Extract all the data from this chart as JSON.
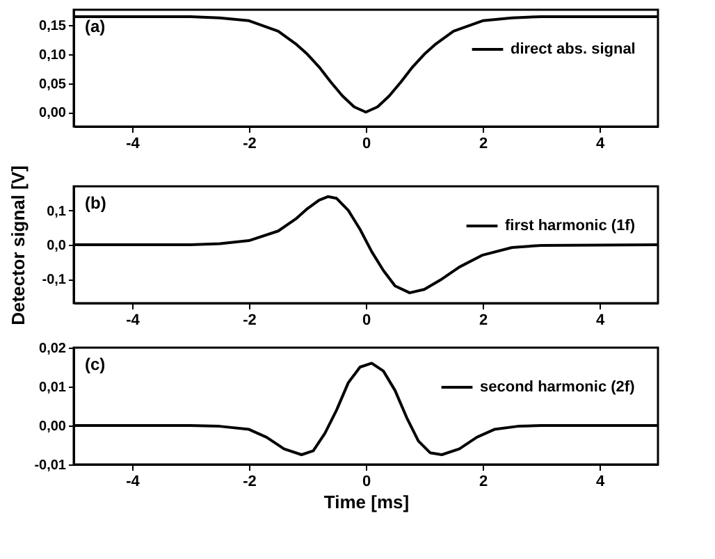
{
  "chart_data": [
    {
      "type": "line",
      "annotations": [
        "(a)"
      ],
      "legend": "top right",
      "xlim": [
        -5,
        5
      ],
      "xticks": [
        -4,
        -2,
        0,
        2,
        4
      ],
      "ylim": [
        -0.025,
        0.177
      ],
      "yticks": [
        {
          "value": 0,
          "label": "0,00"
        },
        {
          "value": 0.05,
          "label": "0,05"
        },
        {
          "value": 0.1,
          "label": "0,10"
        },
        {
          "value": 0.15,
          "label": "0,15"
        }
      ],
      "series": [
        {
          "name": "direct abs. signal",
          "color": "#000000",
          "x": [
            -5,
            -3,
            -2.5,
            -2,
            -1.5,
            -1.2,
            -1,
            -0.8,
            -0.6,
            -0.4,
            -0.2,
            0,
            0.2,
            0.4,
            0.6,
            0.8,
            1,
            1.2,
            1.5,
            2,
            2.5,
            3,
            5
          ],
          "values": [
            0.165,
            0.165,
            0.163,
            0.158,
            0.14,
            0.118,
            0.1,
            0.078,
            0.052,
            0.028,
            0.009,
            0,
            0.009,
            0.028,
            0.052,
            0.078,
            0.1,
            0.118,
            0.14,
            0.158,
            0.163,
            0.165,
            0.165
          ]
        }
      ]
    },
    {
      "type": "line",
      "annotations": [
        "(b)"
      ],
      "ylabel": "Detector signal [V]",
      "legend": "top right",
      "xlim": [
        -5,
        5
      ],
      "xticks": [
        -4,
        -2,
        0,
        2,
        4
      ],
      "ylim": [
        -0.17,
        0.17
      ],
      "yticks": [
        {
          "value": -0.1,
          "label": "-0,1"
        },
        {
          "value": 0,
          "label": "0,0"
        },
        {
          "value": 0.1,
          "label": "0,1"
        }
      ],
      "series": [
        {
          "name": "first harmonic (1f)",
          "color": "#000000",
          "x": [
            -5,
            -3,
            -2.5,
            -2,
            -1.5,
            -1.2,
            -1,
            -0.8,
            -0.65,
            -0.5,
            -0.3,
            -0.1,
            0.1,
            0.3,
            0.5,
            0.75,
            1,
            1.3,
            1.6,
            2,
            2.5,
            3,
            5
          ],
          "values": [
            0,
            0,
            0.003,
            0.012,
            0.04,
            0.075,
            0.105,
            0.13,
            0.14,
            0.135,
            0.1,
            0.045,
            -0.02,
            -0.075,
            -0.12,
            -0.14,
            -0.13,
            -0.1,
            -0.065,
            -0.03,
            -0.008,
            -0.002,
            0
          ]
        }
      ]
    },
    {
      "type": "line",
      "annotations": [
        "(c)"
      ],
      "xlabel": "Time [ms]",
      "legend": "top right",
      "xlim": [
        -5,
        5
      ],
      "xticks": [
        -4,
        -2,
        0,
        2,
        4
      ],
      "ylim": [
        -0.01,
        0.02
      ],
      "yticks": [
        {
          "value": -0.01,
          "label": "-0,01"
        },
        {
          "value": 0,
          "label": "0,00"
        },
        {
          "value": 0.01,
          "label": "0,01"
        },
        {
          "value": 0.02,
          "label": "0,02"
        }
      ],
      "series": [
        {
          "name": "second harmonic (2f)",
          "color": "#000000",
          "x": [
            -5,
            -3,
            -2.5,
            -2,
            -1.7,
            -1.4,
            -1.1,
            -0.9,
            -0.7,
            -0.5,
            -0.3,
            -0.1,
            0.1,
            0.3,
            0.5,
            0.7,
            0.9,
            1.1,
            1.3,
            1.6,
            1.9,
            2.2,
            2.6,
            3,
            5
          ],
          "values": [
            0,
            0,
            -0.0002,
            -0.001,
            -0.003,
            -0.006,
            -0.0075,
            -0.0065,
            -0.002,
            0.004,
            0.011,
            0.015,
            0.016,
            0.014,
            0.009,
            0.002,
            -0.004,
            -0.007,
            -0.0075,
            -0.006,
            -0.003,
            -0.001,
            -0.0002,
            0,
            0
          ]
        }
      ]
    }
  ]
}
